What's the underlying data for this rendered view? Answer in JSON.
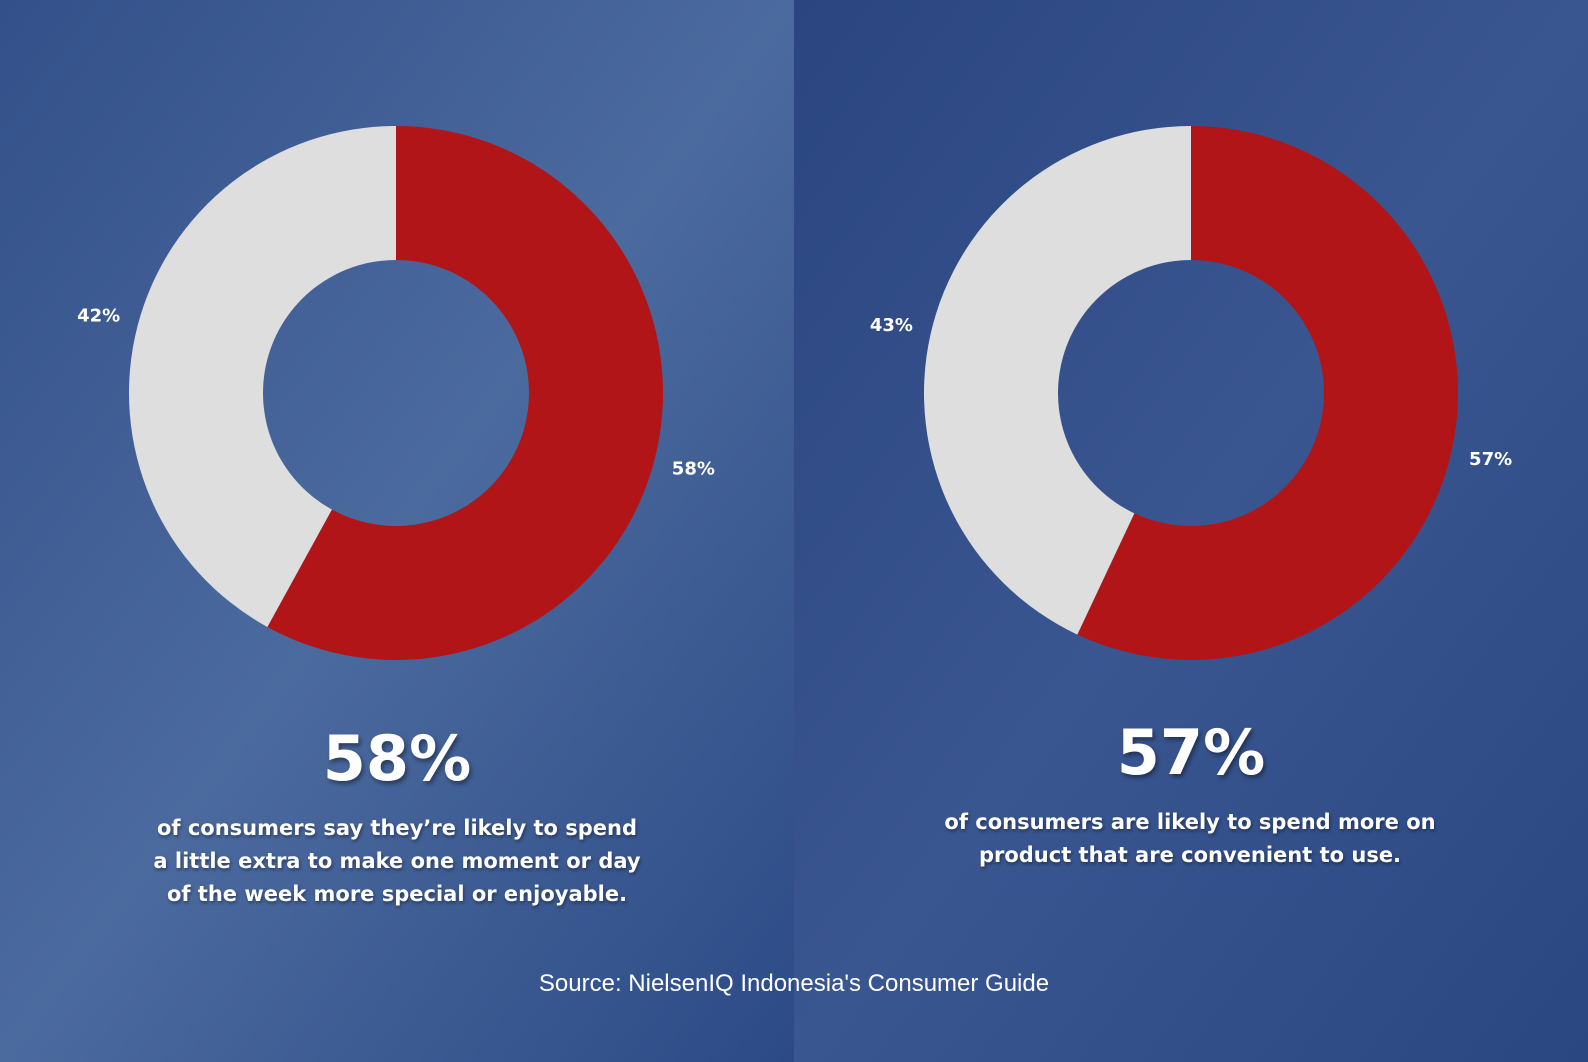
{
  "chart_data": [
    {
      "type": "donut",
      "values": [
        58,
        42
      ],
      "value_labels": [
        "58%",
        "42%"
      ],
      "colors": [
        "#b21518",
        "#dedede"
      ],
      "headline": "58%",
      "description": "of consumers say they’re likely to spend a little extra to make one moment or day of the week more special or enjoyable."
    },
    {
      "type": "donut",
      "values": [
        57,
        43
      ],
      "value_labels": [
        "57%",
        "43%"
      ],
      "colors": [
        "#b21518",
        "#dedede"
      ],
      "headline": "57%",
      "description": "of consumers are likely to spend more on product that are convenient to use."
    }
  ],
  "source": "Source: NielsenIQ Indonesia's Consumer Guide"
}
